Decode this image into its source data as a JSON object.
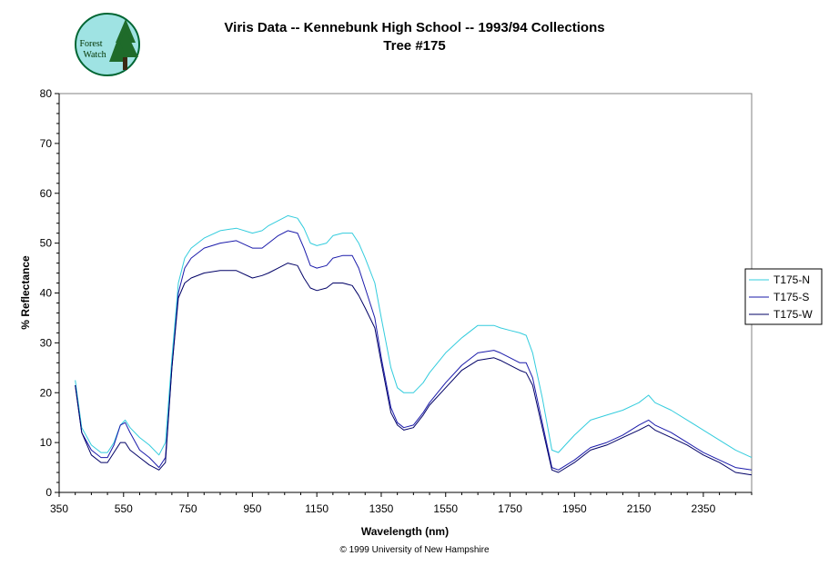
{
  "title": "Viris Data -- Kennebunk High School -- 1993/94 Collections",
  "subtitle": "Tree #175",
  "footer": "© 1999 University of New Hampshire",
  "logo": {
    "line1": "Forest",
    "line2": "Watch"
  },
  "chart_data": {
    "type": "line",
    "xlabel": "Wavelength (nm)",
    "ylabel": "% Reflectance",
    "xlim": [
      350,
      2500
    ],
    "ylim": [
      0,
      80
    ],
    "x_ticks": [
      350,
      550,
      750,
      950,
      1150,
      1350,
      1550,
      1750,
      1950,
      2150,
      2350
    ],
    "y_ticks": [
      0,
      10,
      20,
      30,
      40,
      50,
      60,
      70,
      80
    ],
    "grid": false,
    "legend_position": "right",
    "series": [
      {
        "name": "T175-N",
        "color": "#33ccdd",
        "x": [
          400,
          420,
          450,
          480,
          500,
          520,
          540,
          555,
          570,
          600,
          630,
          660,
          680,
          700,
          720,
          740,
          760,
          800,
          850,
          900,
          950,
          980,
          1000,
          1030,
          1060,
          1090,
          1110,
          1130,
          1150,
          1180,
          1200,
          1230,
          1260,
          1280,
          1300,
          1330,
          1350,
          1380,
          1400,
          1420,
          1450,
          1480,
          1500,
          1550,
          1600,
          1650,
          1700,
          1720,
          1750,
          1780,
          1800,
          1820,
          1850,
          1880,
          1900,
          1950,
          2000,
          2050,
          2100,
          2150,
          2180,
          2200,
          2250,
          2300,
          2350,
          2400,
          2450,
          2500
        ],
        "y": [
          22.5,
          13,
          9.5,
          8,
          8,
          10,
          13.5,
          14.5,
          13,
          11,
          9.5,
          7.5,
          10,
          27,
          42,
          47,
          49,
          51,
          52.5,
          53,
          52,
          52.5,
          53.5,
          54.5,
          55.5,
          55,
          53,
          50,
          49.5,
          50,
          51.5,
          52,
          52,
          50,
          47,
          42,
          35,
          25,
          21,
          20,
          20,
          22,
          24,
          28,
          31,
          33.5,
          33.5,
          33,
          32.5,
          32,
          31.5,
          28,
          19,
          8.5,
          8,
          11.5,
          14.5,
          15.5,
          16.5,
          18,
          19.5,
          18,
          16.5,
          14.5,
          12.5,
          10.5,
          8.5,
          7
        ]
      },
      {
        "name": "T175-S",
        "color": "#1a1aaa",
        "x": [
          400,
          420,
          450,
          480,
          500,
          520,
          540,
          555,
          570,
          600,
          630,
          660,
          680,
          700,
          720,
          740,
          760,
          800,
          850,
          900,
          950,
          980,
          1000,
          1030,
          1060,
          1090,
          1110,
          1130,
          1150,
          1180,
          1200,
          1230,
          1260,
          1280,
          1300,
          1330,
          1350,
          1380,
          1400,
          1420,
          1450,
          1480,
          1500,
          1550,
          1600,
          1650,
          1700,
          1720,
          1750,
          1780,
          1800,
          1820,
          1850,
          1880,
          1900,
          1950,
          2000,
          2050,
          2100,
          2150,
          2180,
          2200,
          2250,
          2300,
          2350,
          2400,
          2450,
          2500
        ],
        "y": [
          21.5,
          12,
          8.5,
          7,
          7,
          9.5,
          13.5,
          14,
          12,
          8.5,
          7,
          5,
          7,
          25,
          40,
          45,
          47,
          49,
          50,
          50.5,
          49,
          49,
          50,
          51.5,
          52.5,
          52,
          49,
          45.5,
          45,
          45.5,
          47,
          47.5,
          47.5,
          45,
          41,
          35,
          27,
          17,
          14,
          13,
          13.5,
          16,
          18,
          22,
          25.5,
          28,
          28.5,
          28,
          27,
          26,
          26,
          23,
          14,
          5,
          4.5,
          6.5,
          9,
          10,
          11.5,
          13.5,
          14.5,
          13.5,
          12,
          10,
          8,
          6.5,
          5,
          4.5
        ]
      },
      {
        "name": "T175-W",
        "color": "#000066",
        "x": [
          400,
          420,
          450,
          480,
          500,
          520,
          540,
          555,
          570,
          600,
          630,
          660,
          680,
          700,
          720,
          740,
          760,
          800,
          850,
          900,
          950,
          980,
          1000,
          1030,
          1060,
          1090,
          1110,
          1130,
          1150,
          1180,
          1200,
          1230,
          1260,
          1280,
          1300,
          1330,
          1350,
          1380,
          1400,
          1420,
          1450,
          1480,
          1500,
          1550,
          1600,
          1650,
          1700,
          1720,
          1750,
          1780,
          1800,
          1820,
          1850,
          1880,
          1900,
          1950,
          2000,
          2050,
          2100,
          2150,
          2180,
          2200,
          2250,
          2300,
          2350,
          2400,
          2450,
          2500
        ],
        "y": [
          21.5,
          12,
          7.5,
          6,
          6,
          8,
          10,
          10,
          8.5,
          7,
          5.5,
          4.5,
          6,
          25,
          39,
          42,
          43,
          44,
          44.5,
          44.5,
          43,
          43.5,
          44,
          45,
          46,
          45.5,
          43,
          41,
          40.5,
          41,
          42,
          42,
          41.5,
          39.5,
          37,
          33,
          26,
          16,
          13.5,
          12.5,
          13,
          15.5,
          17.5,
          21,
          24.5,
          26.5,
          27,
          26.5,
          25.5,
          24.5,
          24,
          21.5,
          13,
          4.5,
          4,
          6,
          8.5,
          9.5,
          11,
          12.5,
          13.5,
          12.5,
          11,
          9.5,
          7.5,
          6,
          4,
          3.5
        ]
      }
    ]
  }
}
